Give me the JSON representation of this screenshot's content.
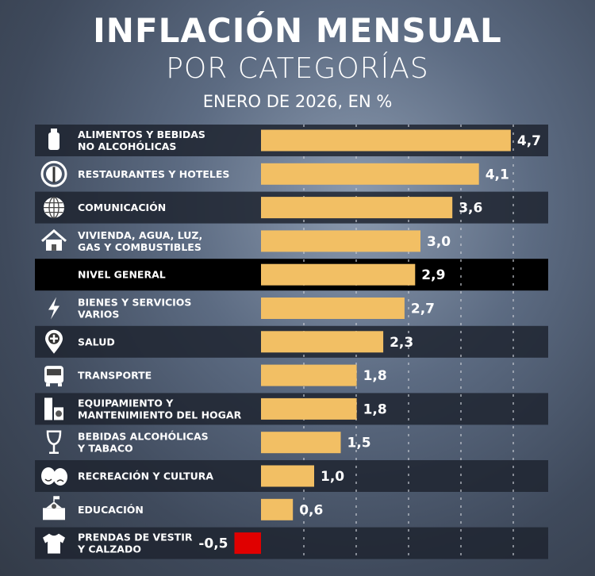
{
  "title": "INFLACIÓN MENSUAL",
  "subtitle": "POR CATEGORÍAS",
  "period": "ENERO DE 2026, EN %",
  "colors": {
    "positive": "#f2bf64",
    "negative": "#e00000",
    "band": "#1e2430",
    "highlight": "#000000"
  },
  "chart_data": {
    "type": "bar",
    "orientation": "horizontal",
    "title": "INFLACIÓN MENSUAL POR CATEGORÍAS",
    "subtitle": "ENERO DE 2026, EN %",
    "xlim": [
      -0.5,
      5
    ],
    "grid": true,
    "categories": [
      {
        "lines": [
          "ALIMENTOS Y BEBIDAS",
          "NO ALCOHÓLICAS"
        ],
        "icon": "bottle-icon",
        "value": 4.7,
        "label": "4,7"
      },
      {
        "lines": [
          "RESTAURANTES Y HOTELES"
        ],
        "icon": "plate-cutlery-icon",
        "value": 4.1,
        "label": "4,1"
      },
      {
        "lines": [
          "COMUNICACIÓN"
        ],
        "icon": "globe-icon",
        "value": 3.6,
        "label": "3,6"
      },
      {
        "lines": [
          "VIVIENDA, AGUA, LUZ,",
          "GAS Y COMBUSTIBLES"
        ],
        "icon": "house-icon",
        "value": 3.0,
        "label": "3,0"
      },
      {
        "lines": [
          "NIVEL GENERAL"
        ],
        "icon": "",
        "value": 2.9,
        "label": "2,9",
        "highlight": true
      },
      {
        "lines": [
          "BIENES Y SERVICIOS",
          "VARIOS"
        ],
        "icon": "lightning-icon",
        "value": 2.7,
        "label": "2,7"
      },
      {
        "lines": [
          "SALUD"
        ],
        "icon": "health-pin-icon",
        "value": 2.3,
        "label": "2,3"
      },
      {
        "lines": [
          "TRANSPORTE"
        ],
        "icon": "bus-icon",
        "value": 1.8,
        "label": "1,8"
      },
      {
        "lines": [
          "EQUIPAMIENTO Y",
          "MANTENIMIENTO DEL HOGAR"
        ],
        "icon": "appliances-icon",
        "value": 1.8,
        "label": "1,8"
      },
      {
        "lines": [
          "BEBIDAS ALCOHÓLICAS",
          "Y TABACO"
        ],
        "icon": "wine-glass-icon",
        "value": 1.5,
        "label": "1,5"
      },
      {
        "lines": [
          "RECREACIÓN Y CULTURA"
        ],
        "icon": "theater-masks-icon",
        "value": 1.0,
        "label": "1,0"
      },
      {
        "lines": [
          "EDUCACIÓN"
        ],
        "icon": "school-icon",
        "value": 0.6,
        "label": "0,6"
      },
      {
        "lines": [
          "PRENDAS DE VESTIR",
          "Y CALZADO"
        ],
        "icon": "tshirt-icon",
        "value": -0.5,
        "label": "-0,5"
      }
    ]
  }
}
